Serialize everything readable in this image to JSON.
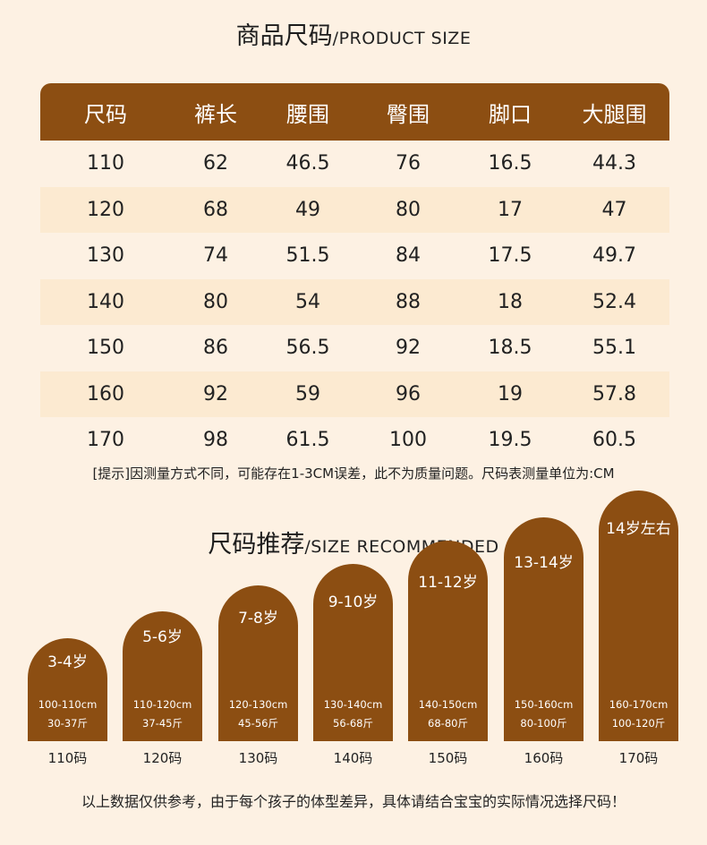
{
  "product_size": {
    "title_zh": "商品尺码",
    "title_en": "/PRODUCT SIZE",
    "headers": [
      "尺码",
      "裤长",
      "腰围",
      "臀围",
      "脚口",
      "大腿围"
    ],
    "rows": [
      [
        "110",
        "62",
        "46.5",
        "76",
        "16.5",
        "44.3"
      ],
      [
        "120",
        "68",
        "49",
        "80",
        "17",
        "47"
      ],
      [
        "130",
        "74",
        "51.5",
        "84",
        "17.5",
        "49.7"
      ],
      [
        "140",
        "80",
        "54",
        "88",
        "18",
        "52.4"
      ],
      [
        "150",
        "86",
        "56.5",
        "92",
        "18.5",
        "55.1"
      ],
      [
        "160",
        "92",
        "59",
        "96",
        "19",
        "57.8"
      ],
      [
        "170",
        "98",
        "61.5",
        "100",
        "19.5",
        "60.5"
      ]
    ],
    "note": "[提示]因测量方式不同，可能存在1-3CM误差，此不为质量问题。尺码表测量单位为:CM"
  },
  "size_recommended": {
    "title_zh": "尺码推荐",
    "title_en": "/SIZE RECOMMENDED",
    "items": [
      {
        "age": "3-4岁",
        "height": "100-110cm",
        "weight": "30-37斤",
        "code": "110码"
      },
      {
        "age": "5-6岁",
        "height": "110-120cm",
        "weight": "37-45斤",
        "code": "120码"
      },
      {
        "age": "7-8岁",
        "height": "120-130cm",
        "weight": "45-56斤",
        "code": "130码"
      },
      {
        "age": "9-10岁",
        "height": "130-140cm",
        "weight": "56-68斤",
        "code": "140码"
      },
      {
        "age": "11-12岁",
        "height": "140-150cm",
        "weight": "68-80斤",
        "code": "150码"
      },
      {
        "age": "13-14岁",
        "height": "150-160cm",
        "weight": "80-100斤",
        "code": "160码"
      },
      {
        "age": "14岁左右",
        "height": "160-170cm",
        "weight": "100-120斤",
        "code": "170码"
      }
    ],
    "footer": "以上数据仅供参考，由于每个孩子的体型差异，具体请结合宝宝的实际情况选择尺码！"
  },
  "colors": {
    "accent": "#8c4e12",
    "background": "#fdf1e3",
    "row_alt": "#fcead1"
  }
}
